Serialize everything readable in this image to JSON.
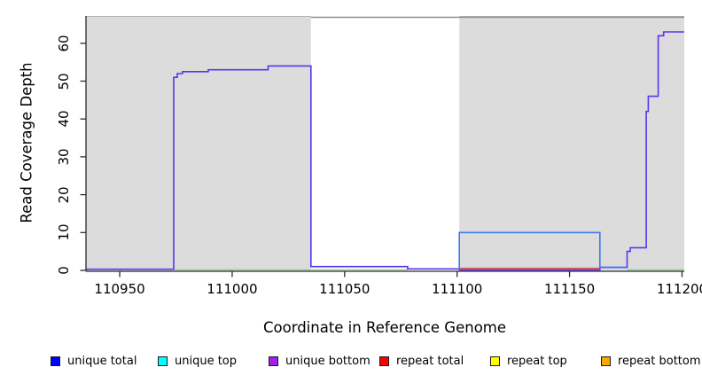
{
  "chart_data": {
    "type": "line",
    "title": "",
    "xlabel": "Coordinate in Reference Genome",
    "ylabel": "Read Coverage Depth",
    "xlim": [
      110935,
      111201
    ],
    "ylim": [
      0,
      67.5
    ],
    "x_ticks": [
      110950,
      111000,
      111050,
      111100,
      111150,
      111200
    ],
    "y_ticks": [
      0,
      10,
      20,
      30,
      40,
      50,
      60
    ],
    "grid": false,
    "legend_position": "bottom",
    "background_regions": [
      {
        "name": "repeat-region-left",
        "x0": 110935,
        "x1": 111035,
        "fill": "#dcdcdc",
        "top_border": "#b3b3b3"
      },
      {
        "name": "repeat-region-right",
        "x0": 111101,
        "x1": 111201,
        "fill": "#dcdcdc",
        "top_border": "#b3b3b3"
      }
    ],
    "clipped_top_band": {
      "x0": 111035,
      "x1": 111201,
      "color": "#8f8f8f"
    },
    "baseline_segments": {
      "color": "#8fd08f",
      "value": 0.18,
      "ranges": [
        [
          110974,
          111078
        ],
        [
          111175.6,
          111201
        ]
      ]
    },
    "series": [
      {
        "name": "unique total",
        "draw_color": "#3b76f2",
        "points": [
          [
            111101,
            0.15
          ],
          [
            111101,
            10
          ],
          [
            111163.5,
            10
          ],
          [
            111163.5,
            0.8
          ],
          [
            111175.6,
            0.8
          ]
        ]
      },
      {
        "name": "unique bottom",
        "draw_color": "#5c33f0",
        "points": [
          [
            110935,
            0.3
          ],
          [
            110974,
            0.3
          ],
          [
            110974,
            51
          ],
          [
            110975.6,
            51
          ],
          [
            110975.6,
            52
          ],
          [
            110977.9,
            52
          ],
          [
            110977.9,
            52.5
          ],
          [
            110989.4,
            52.5
          ],
          [
            110989.4,
            53
          ],
          [
            111016,
            53
          ],
          [
            111016,
            54
          ],
          [
            111035,
            54
          ],
          [
            111035,
            1
          ],
          [
            111078,
            1
          ],
          [
            111078,
            0.4
          ],
          [
            111101,
            0.4
          ],
          [
            111101,
            0.15
          ],
          [
            111163.5,
            0.15
          ],
          [
            111163.5,
            0.8
          ],
          [
            111175.6,
            0.8
          ],
          [
            111175.6,
            5
          ],
          [
            111177,
            5
          ],
          [
            111177,
            6
          ],
          [
            111184.1,
            6
          ],
          [
            111184.1,
            42
          ],
          [
            111185,
            42
          ],
          [
            111185,
            46
          ],
          [
            111189.4,
            46
          ],
          [
            111189.4,
            62
          ],
          [
            111191.8,
            62
          ],
          [
            111191.8,
            63
          ],
          [
            111201,
            63
          ]
        ]
      },
      {
        "name": "repeat total",
        "draw_color": "#e05560",
        "points": [
          [
            111101,
            0.55
          ],
          [
            111163.5,
            0.55
          ]
        ]
      }
    ],
    "legend": [
      {
        "label": "unique total",
        "color": "#0000ff"
      },
      {
        "label": "unique top",
        "color": "#00ffff"
      },
      {
        "label": "unique bottom",
        "color": "#a020f0"
      },
      {
        "label": "repeat total",
        "color": "#ff0000"
      },
      {
        "label": "repeat top",
        "color": "#ffff00"
      },
      {
        "label": "repeat bottom",
        "color": "#ffa500"
      }
    ]
  }
}
